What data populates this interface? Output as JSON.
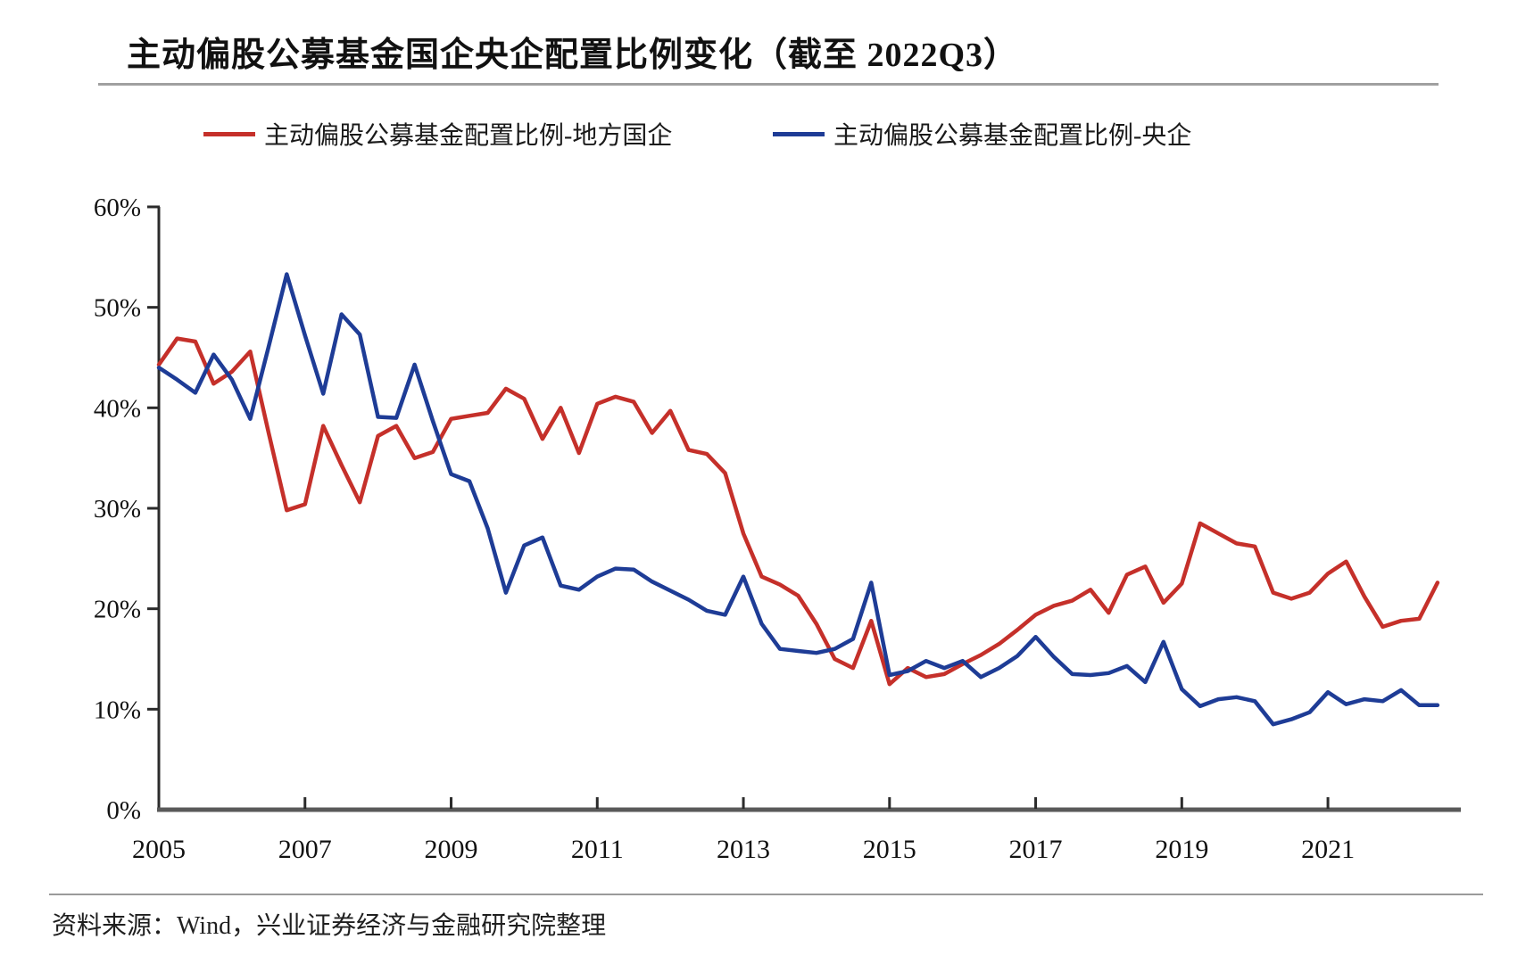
{
  "title": "主动偏股公募基金国企央企配置比例变化（截至 2022Q3）",
  "source": "资料来源：Wind，兴业证券经济与金融研究院整理",
  "chart_data": {
    "type": "line",
    "title": "主动偏股公募基金国企央企配置比例变化（截至 2022Q3）",
    "x_start": "2005Q1",
    "x_end": "2022Q3",
    "x_frequency": "quarterly",
    "x_tick_labels": [
      "2005",
      "2007",
      "2009",
      "2011",
      "2013",
      "2015",
      "2017",
      "2019",
      "2021"
    ],
    "y_tick_labels": [
      "60%",
      "50%",
      "40%",
      "30%",
      "20%",
      "10%",
      "0%"
    ],
    "y_tick_values": [
      60,
      50,
      40,
      30,
      20,
      10,
      0
    ],
    "ylim": [
      0,
      60
    ],
    "y_unit": "%",
    "grid": false,
    "legend_position": "top",
    "series": [
      {
        "name": "主动偏股公募基金配置比例-地方国企",
        "color": "#c5302a",
        "values": [
          44.3,
          46.9,
          46.6,
          42.4,
          43.6,
          45.6,
          37.6,
          29.8,
          30.4,
          38.2,
          34.3,
          30.6,
          37.2,
          38.2,
          35.0,
          35.6,
          38.9,
          39.2,
          39.5,
          41.9,
          40.9,
          36.9,
          40.0,
          35.5,
          40.4,
          41.1,
          40.6,
          37.5,
          39.7,
          35.8,
          35.4,
          33.5,
          27.5,
          23.2,
          22.4,
          21.3,
          18.5,
          15.0,
          14.1,
          18.8,
          12.5,
          14.1,
          13.2,
          13.5,
          14.5,
          15.4,
          16.5,
          17.9,
          19.4,
          20.3,
          20.8,
          21.9,
          19.6,
          23.4,
          24.2,
          20.6,
          22.5,
          28.5,
          27.5,
          26.5,
          26.2,
          21.6,
          21.0,
          21.6,
          23.5,
          24.7,
          21.2,
          18.2,
          18.8,
          19.0,
          22.6
        ]
      },
      {
        "name": "主动偏股公募基金配置比例-央企",
        "color": "#1e3c96",
        "values": [
          44.0,
          42.8,
          41.5,
          45.3,
          42.8,
          38.9,
          46.0,
          53.3,
          47.2,
          41.4,
          49.3,
          47.3,
          39.1,
          39.0,
          44.3,
          38.7,
          33.4,
          32.7,
          28.0,
          21.6,
          26.3,
          27.1,
          22.3,
          21.9,
          23.2,
          24.0,
          23.9,
          22.7,
          21.8,
          20.9,
          19.8,
          19.4,
          23.2,
          18.5,
          16.0,
          15.8,
          15.6,
          16.0,
          17.0,
          22.6,
          13.4,
          13.8,
          14.8,
          14.1,
          14.8,
          13.2,
          14.1,
          15.3,
          17.2,
          15.2,
          13.5,
          13.4,
          13.6,
          14.3,
          12.7,
          16.7,
          12.0,
          10.3,
          11.0,
          11.2,
          10.8,
          8.5,
          9.0,
          9.7,
          11.7,
          10.5,
          11.0,
          10.8,
          11.9,
          10.4,
          10.4
        ]
      }
    ]
  }
}
